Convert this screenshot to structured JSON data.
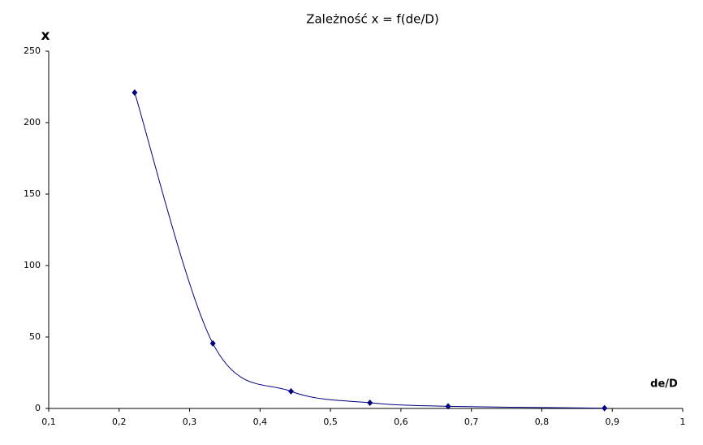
{
  "chart_data": {
    "type": "scatter",
    "title": "Zależność x = f(de/D)",
    "x_label": "de/D",
    "y_label": "x",
    "x": [
      0.222,
      0.333,
      0.444,
      0.556,
      0.667,
      0.889
    ],
    "series": [
      {
        "name": "x",
        "color": "#000080",
        "values": [
          221,
          45.5,
          12,
          4,
          1.5,
          0.2
        ]
      }
    ],
    "smooth_line": true,
    "xlim": [
      0.1,
      1
    ],
    "xticks": [
      {
        "value": 0.1,
        "label": "0,1"
      },
      {
        "value": 0.2,
        "label": "0,2"
      },
      {
        "value": 0.3,
        "label": "0,3"
      },
      {
        "value": 0.4,
        "label": "0,4"
      },
      {
        "value": 0.5,
        "label": "0,5"
      },
      {
        "value": 0.6,
        "label": "0,6"
      },
      {
        "value": 0.7,
        "label": "0,7"
      },
      {
        "value": 0.8,
        "label": "0,8"
      },
      {
        "value": 0.9,
        "label": "0,9"
      },
      1
    ],
    "ylim": [
      0,
      250
    ],
    "yticks": [
      0,
      50,
      100,
      150,
      200,
      250
    ],
    "grid": false
  }
}
